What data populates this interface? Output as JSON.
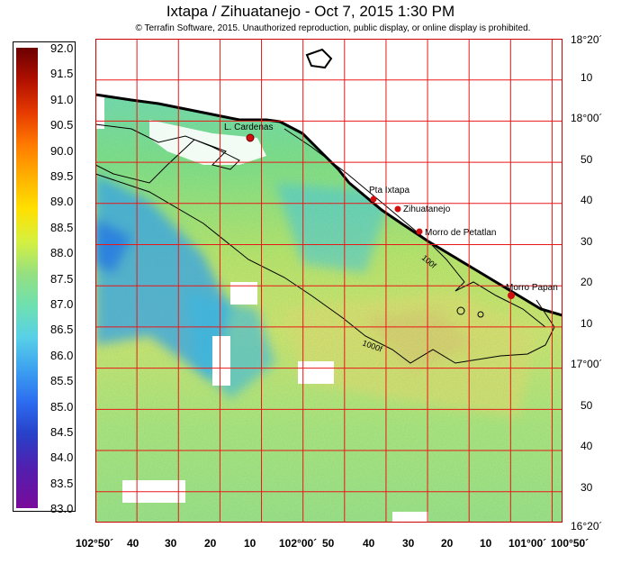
{
  "title": "Ixtapa / Zihuatanejo - Oct 7, 2015 1:30 PM",
  "copyright": "© Terrafin Software,  2015.  Unauthorized reproduction, public display, or online display is prohibited.",
  "colors": {
    "grid": "#e81818",
    "coast": "#000000",
    "land": "#ffffff",
    "frame": "#cc0000"
  },
  "scale": {
    "min": 83.0,
    "max": 92.0,
    "labels": [
      "92.0",
      "91.5",
      "91.0",
      "90.5",
      "90.0",
      "89.5",
      "89.0",
      "88.5",
      "88.0",
      "87.5",
      "87.0",
      "86.5",
      "86.0",
      "85.5",
      "85.0",
      "84.5",
      "84.0",
      "83.5",
      "83.0"
    ]
  },
  "places": [
    {
      "name": "L. Cardenas"
    },
    {
      "name": "Pta Ixtapa"
    },
    {
      "name": "Zihuatanejo"
    },
    {
      "name": "Morro de Petatlan"
    },
    {
      "name": "Morro Papan"
    }
  ],
  "contours": [
    "1000f",
    "100f"
  ],
  "lat_labels": [
    "18°20´",
    "10",
    "18°00´",
    "50",
    "40",
    "30",
    "20",
    "10",
    "17°00´",
    "50",
    "40",
    "30",
    "16°20´"
  ],
  "lon_labels": [
    "102°50´",
    "40",
    "30",
    "20",
    "10",
    "102°00´",
    "50",
    "40",
    "30",
    "20",
    "10",
    "101°00´",
    "100°50´"
  ]
}
